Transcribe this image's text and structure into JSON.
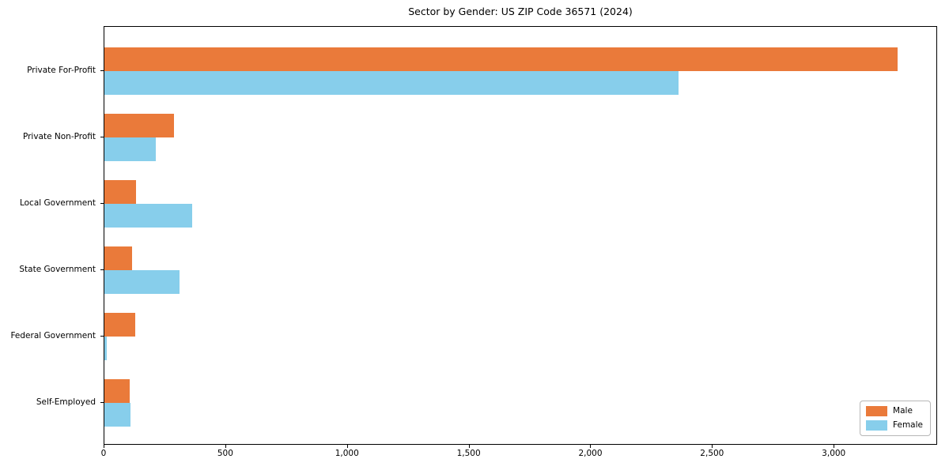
{
  "chart_data": {
    "type": "bar",
    "orientation": "horizontal",
    "title": "Sector by Gender: US ZIP Code 36571 (2024)",
    "categories": [
      "Private For-Profit",
      "Private Non-Profit",
      "Local Government",
      "State Government",
      "Federal Government",
      "Self-Employed"
    ],
    "series": [
      {
        "name": "Male",
        "color": "#ea7a3a",
        "values": [
          3260,
          285,
          130,
          113,
          127,
          105
        ]
      },
      {
        "name": "Female",
        "color": "#87ceeb",
        "values": [
          2360,
          210,
          360,
          310,
          10,
          107
        ]
      }
    ],
    "xlabel": "",
    "ylabel": "",
    "xlim": [
      0,
      3425
    ],
    "xticks": [
      0,
      500,
      1000,
      1500,
      2000,
      2500,
      3000
    ],
    "xtick_labels": [
      "0",
      "500",
      "1,000",
      "1,500",
      "2,000",
      "2,500",
      "3,000"
    ],
    "grid": false,
    "legend_position": "lower right"
  }
}
